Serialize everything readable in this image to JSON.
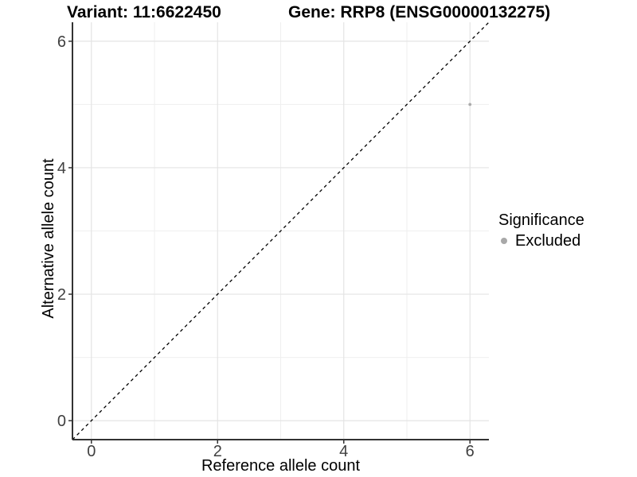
{
  "figure": {
    "titles": {
      "left": "Variant: 11:6622450",
      "right": "Gene: RRP8 (ENSG00000132275)"
    }
  },
  "chart_data": {
    "type": "scatter",
    "title_left": "Variant: 11:6622450",
    "title_right": "Gene: RRP8 (ENSG00000132275)",
    "xlabel": "Reference allele count",
    "ylabel": "Alternative allele count",
    "xlim": [
      -0.3,
      6.3
    ],
    "ylim": [
      -0.3,
      6.3
    ],
    "x_ticks": [
      0,
      2,
      4,
      6
    ],
    "y_ticks": [
      0,
      2,
      4,
      6
    ],
    "x_minor_gridlines": [
      1,
      3,
      5
    ],
    "y_minor_gridlines": [
      1,
      3,
      5
    ],
    "grid": true,
    "points": [
      {
        "x": 6,
        "y": 5,
        "series": "Excluded"
      }
    ],
    "reference_line": {
      "slope": 1,
      "intercept": 0,
      "style": "dashed",
      "color": "#000000"
    },
    "legend": {
      "title": "Significance",
      "position": "right",
      "items": [
        {
          "label": "Excluded",
          "color": "#a8a8a8"
        }
      ]
    },
    "colors": {
      "grid_major": "#e4e4e4",
      "grid_minor": "#efefef",
      "axis": "#333333",
      "tick_label": "#404040",
      "point": "#aaaaaa"
    }
  }
}
